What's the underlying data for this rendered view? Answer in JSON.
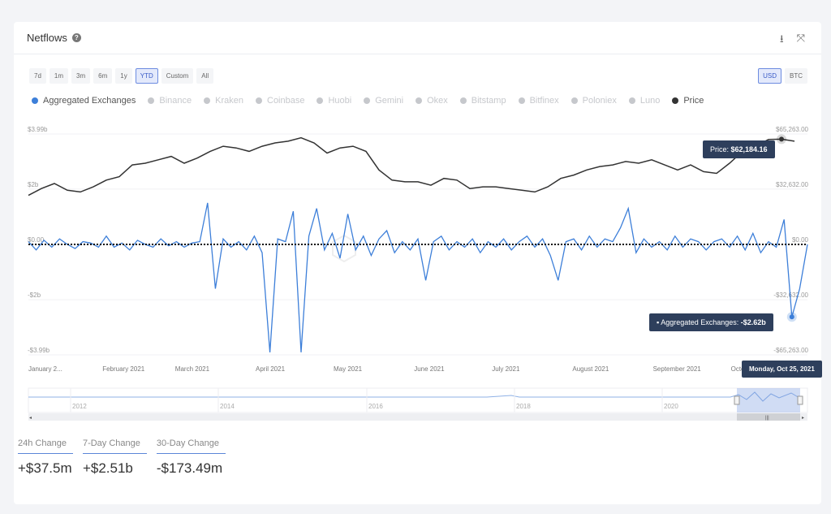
{
  "header": {
    "title": "Netflows",
    "help_icon": "?"
  },
  "ranges": [
    "7d",
    "1m",
    "3m",
    "6m",
    "1y",
    "YTD",
    "Custom",
    "All"
  ],
  "active_range": "YTD",
  "currency": [
    "USD",
    "BTC"
  ],
  "active_currency": "USD",
  "legend": [
    {
      "name": "Aggregated Exchanges",
      "on": true,
      "color": "#3d7fd9"
    },
    {
      "name": "Binance"
    },
    {
      "name": "Kraken"
    },
    {
      "name": "Coinbase"
    },
    {
      "name": "Huobi"
    },
    {
      "name": "Gemini"
    },
    {
      "name": "Okex"
    },
    {
      "name": "Bitstamp"
    },
    {
      "name": "Bitfinex"
    },
    {
      "name": "Poloniex"
    },
    {
      "name": "Luno"
    },
    {
      "name": "Price",
      "on": true,
      "color": "#333333"
    }
  ],
  "tooltips": {
    "price_label": "Price: ",
    "price_value": "$62,184.16",
    "agg_label": "Aggregated Exchanges: ",
    "agg_value": "-$2.62b",
    "date": "Monday, Oct 25, 2021"
  },
  "stats": [
    {
      "label": "24h Change",
      "value": "+$37.5m"
    },
    {
      "label": "7-Day Change",
      "value": "+$2.51b"
    },
    {
      "label": "30-Day Change",
      "value": "-$173.49m"
    }
  ],
  "chart_data": {
    "type": "line",
    "title": "Netflows",
    "left_axis": {
      "ticks": [
        "$3.99b",
        "$2b",
        "$0.00",
        "-$2b",
        "-$3.99b"
      ],
      "tick_values": [
        3.99,
        2,
        0,
        -2,
        -3.99
      ],
      "range": [
        -3.99,
        3.99
      ],
      "unit": "USD billions"
    },
    "right_axis": {
      "ticks": [
        "$65,263.00",
        "$32,632.00",
        "$0.00",
        "-$32,632.00",
        "-$65,263.00"
      ],
      "tick_values": [
        65263,
        32632,
        0,
        -32632,
        -65263
      ],
      "range": [
        -65263,
        65263
      ]
    },
    "x_ticks": [
      "January 2...",
      "February 2021",
      "March 2021",
      "April 2021",
      "May 2021",
      "June 2021",
      "July 2021",
      "August 2021",
      "September 2021",
      "October 2021"
    ],
    "x_tick_days": [
      0,
      31,
      59,
      90,
      120,
      151,
      181,
      212,
      243,
      273
    ],
    "x_range_days": [
      0,
      300
    ],
    "series": [
      {
        "name": "Price",
        "axis": "right",
        "color": "#333333",
        "step_days": 5,
        "values": [
          29000,
          33000,
          36000,
          32000,
          31000,
          34000,
          38000,
          40000,
          47000,
          48000,
          50000,
          52000,
          48000,
          51000,
          55000,
          58000,
          57000,
          55000,
          58000,
          60000,
          61000,
          63000,
          60000,
          54000,
          57000,
          58000,
          55000,
          44000,
          38000,
          37000,
          37000,
          35000,
          39000,
          38000,
          33000,
          34000,
          34000,
          33000,
          32000,
          31000,
          34000,
          39000,
          41000,
          44000,
          46000,
          47000,
          49000,
          48000,
          50000,
          47000,
          44000,
          47000,
          43000,
          42000,
          48000,
          55000,
          58000,
          62000,
          62184,
          61000
        ]
      },
      {
        "name": "Aggregated Exchanges",
        "axis": "left",
        "color": "#3d7fd9",
        "step_days": 3,
        "values": [
          0.1,
          -0.2,
          0.15,
          -0.1,
          0.2,
          0,
          -0.15,
          0.1,
          0.05,
          -0.1,
          0.3,
          -0.1,
          0.05,
          -0.2,
          0.15,
          0,
          -0.1,
          0.2,
          -0.05,
          0.1,
          -0.1,
          0.05,
          0.1,
          1.5,
          -1.6,
          0.2,
          -0.1,
          0.1,
          -0.2,
          0.3,
          -0.3,
          -3.9,
          0.2,
          0.1,
          1.2,
          -3.9,
          0.3,
          1.3,
          -0.2,
          0.4,
          -0.5,
          1.1,
          -0.2,
          0.3,
          -0.4,
          0.2,
          0.5,
          -0.3,
          0.1,
          -0.2,
          0.2,
          -1.3,
          0.1,
          0.3,
          -0.2,
          0.1,
          -0.1,
          0.2,
          -0.3,
          0.1,
          -0.1,
          0.2,
          -0.2,
          0.1,
          0.3,
          -0.1,
          0.2,
          -0.4,
          -1.3,
          0.1,
          0.2,
          -0.2,
          0.3,
          -0.1,
          0.2,
          0.1,
          0.6,
          1.3,
          -0.3,
          0.2,
          -0.1,
          0.1,
          -0.2,
          0.3,
          -0.1,
          0.2,
          0.1,
          -0.2,
          0.1,
          0.2,
          -0.1,
          0.3,
          -0.2,
          0.4,
          -0.3,
          0.1,
          -0.1,
          0.9,
          -2.62,
          -1.6,
          0
        ]
      }
    ],
    "navigator": {
      "ticks": [
        "2012",
        "2014",
        "2016",
        "2018",
        "2020"
      ]
    }
  }
}
